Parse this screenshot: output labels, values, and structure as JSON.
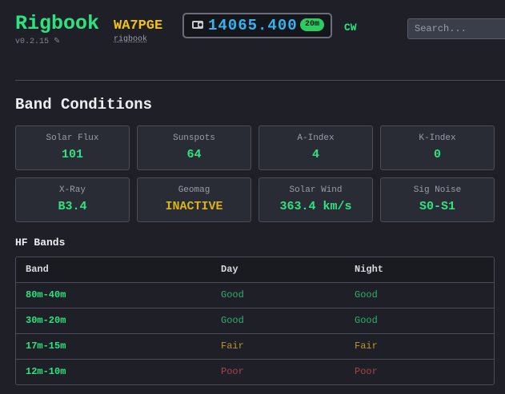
{
  "header": {
    "title": "Rigbook",
    "version": "v0.2.15",
    "callsign": "WA7PGE",
    "callsign_link": "rigbook",
    "frequency": "14065.400",
    "band": "20m",
    "mode": "CW",
    "search_placeholder": "Search..."
  },
  "section_title": "Band Conditions",
  "cards": [
    {
      "label": "Solar Flux",
      "value": "101",
      "color": "#2ee27f"
    },
    {
      "label": "Sunspots",
      "value": "64",
      "color": "#2ee27f"
    },
    {
      "label": "A-Index",
      "value": "4",
      "color": "#2ee27f"
    },
    {
      "label": "K-Index",
      "value": "0",
      "color": "#2ee27f"
    },
    {
      "label": "X-Ray",
      "value": "B3.4",
      "color": "#2ee27f"
    },
    {
      "label": "Geomag",
      "value": "INACTIVE",
      "color": "#d9b31a"
    },
    {
      "label": "Solar Wind",
      "value": "363.4 km/s",
      "color": "#2ee27f"
    },
    {
      "label": "Sig Noise",
      "value": "S0-S1",
      "color": "#2ee27f"
    }
  ],
  "hf_title": "HF Bands",
  "table": {
    "headers": [
      "Band",
      "Day",
      "Night"
    ],
    "rows": [
      [
        "80m-40m",
        "Good",
        "Good"
      ],
      [
        "30m-20m",
        "Good",
        "Good"
      ],
      [
        "17m-15m",
        "Fair",
        "Fair"
      ],
      [
        "12m-10m",
        "Poor",
        "Poor"
      ]
    ],
    "status_colors": {
      "Good": "#2fae68",
      "Fair": "#b8962a",
      "Poor": "#a8434a"
    }
  }
}
